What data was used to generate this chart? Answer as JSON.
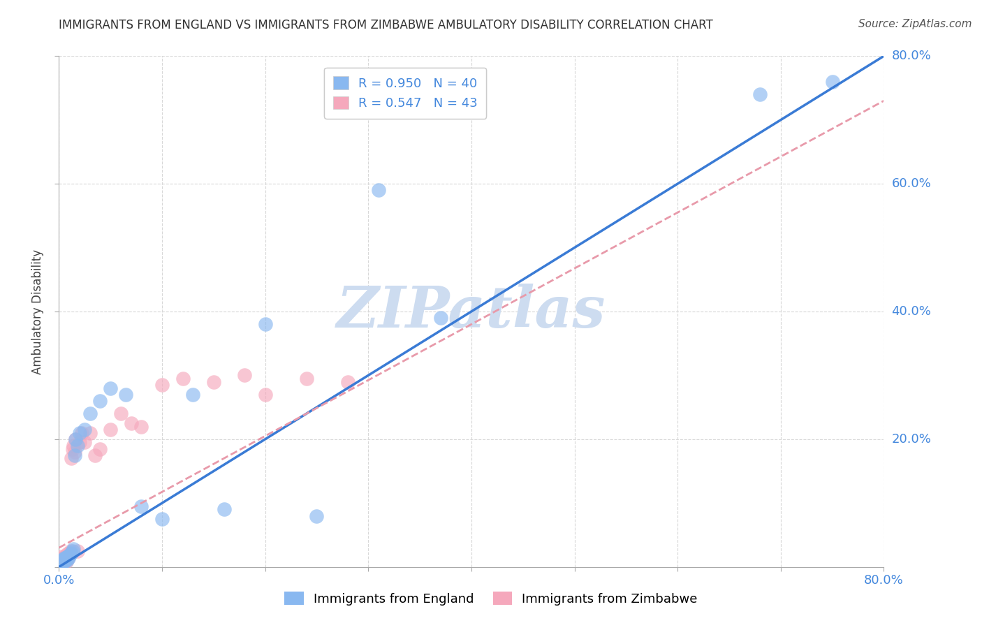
{
  "title": "IMMIGRANTS FROM ENGLAND VS IMMIGRANTS FROM ZIMBABWE AMBULATORY DISABILITY CORRELATION CHART",
  "source": "Source: ZipAtlas.com",
  "ylabel": "Ambulatory Disability",
  "xlim": [
    0.0,
    0.8
  ],
  "ylim": [
    0.0,
    0.8
  ],
  "xticks": [
    0.0,
    0.1,
    0.2,
    0.3,
    0.4,
    0.5,
    0.6,
    0.7,
    0.8
  ],
  "yticks": [
    0.0,
    0.2,
    0.4,
    0.6,
    0.8
  ],
  "background_color": "#ffffff",
  "grid_color": "#d8d8d8",
  "watermark_text": "ZIPatlas",
  "watermark_color": "#cddcf0",
  "england_color": "#89b8f0",
  "zimbabwe_color": "#f5a8bc",
  "england_line_color": "#3a7bd5",
  "zimbabwe_line_color": "#e89aaa",
  "england_R": 0.95,
  "england_N": 40,
  "zimbabwe_R": 0.547,
  "zimbabwe_N": 43,
  "legend_label_england": "Immigrants from England",
  "legend_label_zimbabwe": "Immigrants from Zimbabwe",
  "england_scatter_x": [
    0.001,
    0.002,
    0.002,
    0.003,
    0.003,
    0.004,
    0.004,
    0.005,
    0.005,
    0.006,
    0.006,
    0.007,
    0.007,
    0.008,
    0.008,
    0.009,
    0.01,
    0.011,
    0.012,
    0.013,
    0.014,
    0.015,
    0.016,
    0.018,
    0.02,
    0.025,
    0.03,
    0.04,
    0.05,
    0.065,
    0.08,
    0.1,
    0.13,
    0.16,
    0.2,
    0.25,
    0.31,
    0.37,
    0.68,
    0.75
  ],
  "england_scatter_y": [
    0.005,
    0.005,
    0.008,
    0.006,
    0.01,
    0.008,
    0.012,
    0.009,
    0.014,
    0.01,
    0.013,
    0.012,
    0.015,
    0.011,
    0.016,
    0.014,
    0.018,
    0.02,
    0.022,
    0.025,
    0.028,
    0.175,
    0.2,
    0.19,
    0.21,
    0.215,
    0.24,
    0.26,
    0.28,
    0.27,
    0.095,
    0.075,
    0.27,
    0.09,
    0.38,
    0.08,
    0.59,
    0.39,
    0.74,
    0.76
  ],
  "zimbabwe_scatter_x": [
    0.001,
    0.001,
    0.002,
    0.002,
    0.002,
    0.003,
    0.003,
    0.004,
    0.004,
    0.005,
    0.005,
    0.006,
    0.006,
    0.007,
    0.007,
    0.008,
    0.008,
    0.009,
    0.01,
    0.011,
    0.012,
    0.013,
    0.014,
    0.015,
    0.016,
    0.018,
    0.02,
    0.022,
    0.025,
    0.03,
    0.035,
    0.04,
    0.05,
    0.06,
    0.07,
    0.08,
    0.1,
    0.12,
    0.15,
    0.18,
    0.2,
    0.24,
    0.28
  ],
  "zimbabwe_scatter_y": [
    0.005,
    0.008,
    0.005,
    0.01,
    0.016,
    0.008,
    0.014,
    0.006,
    0.012,
    0.009,
    0.015,
    0.01,
    0.016,
    0.008,
    0.018,
    0.012,
    0.02,
    0.015,
    0.022,
    0.025,
    0.17,
    0.185,
    0.19,
    0.18,
    0.2,
    0.025,
    0.195,
    0.21,
    0.195,
    0.21,
    0.175,
    0.185,
    0.215,
    0.24,
    0.225,
    0.22,
    0.285,
    0.295,
    0.29,
    0.3,
    0.27,
    0.295,
    0.29
  ],
  "eng_line_x0": 0.0,
  "eng_line_y0": 0.0,
  "eng_line_x1": 0.8,
  "eng_line_y1": 0.8,
  "zim_line_x0": 0.0,
  "zim_line_y0": 0.03,
  "zim_line_x1": 0.8,
  "zim_line_y1": 0.73
}
